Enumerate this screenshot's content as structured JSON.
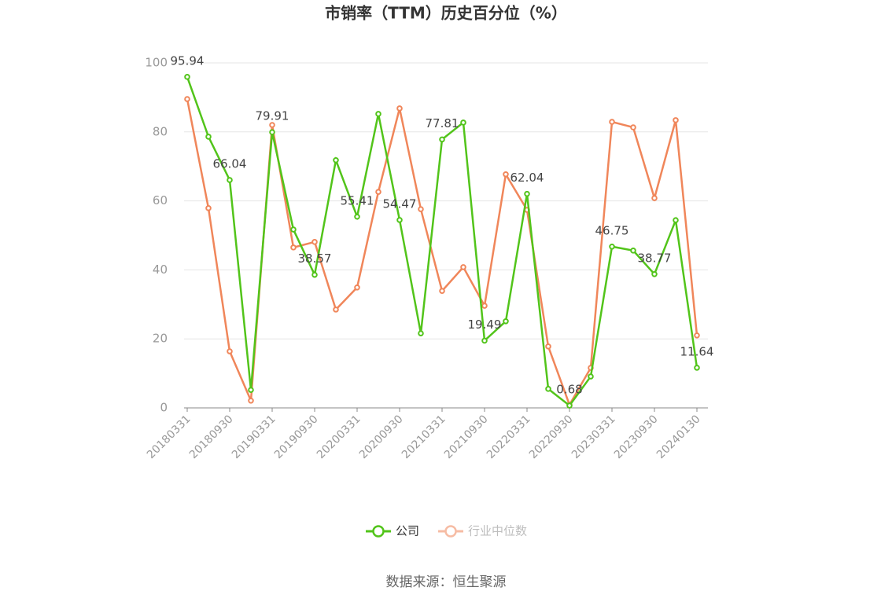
{
  "chart_data": {
    "type": "line",
    "title": "市销率（TTM）历史百分位（%）",
    "source": "数据来源：恒生聚源",
    "categories": [
      "20180331",
      null,
      "20180930",
      null,
      "20190331",
      null,
      "20190930",
      null,
      "20200331",
      null,
      "20200930",
      null,
      "20210331",
      null,
      "20210930",
      null,
      "20220331",
      null,
      "20220930",
      null,
      "20230331",
      null,
      "20230930",
      null,
      "20240130"
    ],
    "ylim": [
      0,
      100
    ],
    "yticks": [
      0,
      20,
      40,
      60,
      80,
      100
    ],
    "grid": true,
    "series": [
      {
        "name": "公司",
        "color": "#52c41a",
        "values": [
          95.94,
          78.6,
          66.04,
          5.2,
          79.91,
          51.7,
          38.57,
          71.8,
          55.41,
          85.2,
          54.47,
          21.6,
          77.81,
          82.7,
          19.49,
          25.1,
          62.04,
          5.5,
          0.68,
          9.1,
          46.75,
          45.6,
          38.77,
          54.4,
          11.64
        ],
        "value_labels": [
          "95.94",
          null,
          "66.04",
          null,
          "79.91",
          null,
          "38.57",
          null,
          "55.41",
          null,
          "54.47",
          null,
          "77.81",
          null,
          "19.49",
          null,
          "62.04",
          null,
          "0.68",
          null,
          "46.75",
          null,
          "38.77",
          null,
          "11.64"
        ]
      },
      {
        "name": "行业中位数",
        "color": "#f0865a",
        "values": [
          89.5,
          57.9,
          16.4,
          2.1,
          82.0,
          46.5,
          48.1,
          28.5,
          34.9,
          62.6,
          86.8,
          57.6,
          33.9,
          40.8,
          29.6,
          67.7,
          57.4,
          17.8,
          0.9,
          11.6,
          82.9,
          81.3,
          60.8,
          83.4,
          21.0
        ]
      }
    ]
  }
}
